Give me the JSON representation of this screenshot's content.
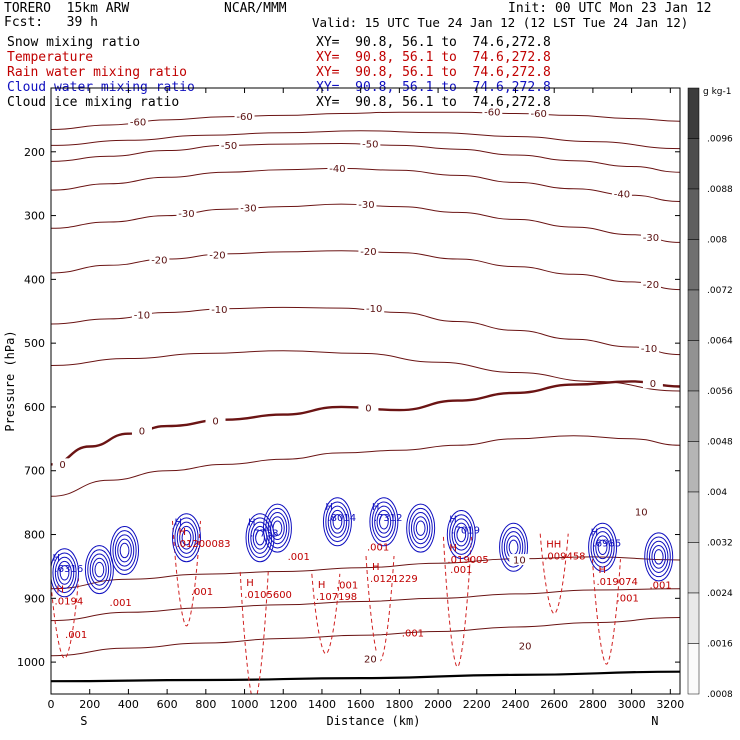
{
  "header": {
    "model": "TORERO  15km ARW",
    "center": "NCAR/MMM",
    "init": "Init: 00 UTC Mon 23 Jan 12",
    "fcst": "Fcst:   39 h",
    "valid": "Valid: 15 UTC Tue 24 Jan 12 (12 LST Tue 24 Jan 12)",
    "cross_section": "XY=  90.8, 56.1 to  74.6,272.8"
  },
  "legend": [
    {
      "label": "Snow mixing ratio",
      "color": "#000000"
    },
    {
      "label": "Temperature",
      "color": "#c00000"
    },
    {
      "label": "Rain water mixing ratio",
      "color": "#c00000"
    },
    {
      "label": "Cloud water mixing ratio",
      "color": "#1010c0"
    },
    {
      "label": "Cloud ice mixing ratio",
      "color": "#000000"
    }
  ],
  "chart_data": {
    "type": "contour-cross-section",
    "xlabel": "Distance (km)",
    "ylabel": "Pressure (hPa)",
    "xlim": [
      0,
      3250
    ],
    "ylim": [
      1050,
      100
    ],
    "xticks": [
      0,
      200,
      400,
      600,
      800,
      1000,
      1200,
      1400,
      1600,
      1800,
      2000,
      2200,
      2400,
      2600,
      2800,
      3000,
      3200
    ],
    "yticks": [
      200,
      300,
      400,
      500,
      600,
      700,
      800,
      900,
      1000
    ],
    "endpoints": {
      "left": "S",
      "right": "N"
    },
    "temperature_isotherms": [
      {
        "value": -60,
        "label": "-60",
        "points": [
          [
            0,
            165
          ],
          [
            300,
            158
          ],
          [
            600,
            150
          ],
          [
            900,
            145
          ],
          [
            1200,
            143
          ],
          [
            1500,
            140
          ],
          [
            1800,
            138
          ],
          [
            2100,
            138
          ],
          [
            2400,
            140
          ],
          [
            2700,
            143
          ],
          [
            3000,
            148
          ],
          [
            3250,
            152
          ]
        ],
        "labels_at": [
          [
            450,
            153
          ],
          [
            1000,
            145
          ],
          [
            2280,
            138
          ],
          [
            2520,
            140
          ]
        ]
      },
      {
        "value": -55,
        "label": "",
        "points": [
          [
            0,
            190
          ],
          [
            400,
            182
          ],
          [
            800,
            174
          ],
          [
            1200,
            170
          ],
          [
            1600,
            167
          ],
          [
            2000,
            170
          ],
          [
            2400,
            176
          ],
          [
            2800,
            184
          ],
          [
            3250,
            195
          ]
        ],
        "labels_at": []
      },
      {
        "value": -50,
        "label": "-50",
        "points": [
          [
            0,
            215
          ],
          [
            300,
            207
          ],
          [
            600,
            198
          ],
          [
            900,
            190
          ],
          [
            1200,
            188
          ],
          [
            1500,
            187
          ],
          [
            1800,
            190
          ],
          [
            2100,
            196
          ],
          [
            2400,
            205
          ],
          [
            2700,
            214
          ],
          [
            3000,
            223
          ],
          [
            3250,
            232
          ]
        ],
        "labels_at": [
          [
            920,
            190
          ],
          [
            1650,
            188
          ]
        ]
      },
      {
        "value": -40,
        "label": "-40",
        "points": [
          [
            0,
            260
          ],
          [
            300,
            250
          ],
          [
            600,
            240
          ],
          [
            900,
            232
          ],
          [
            1200,
            228
          ],
          [
            1500,
            226
          ],
          [
            1800,
            229
          ],
          [
            2100,
            237
          ],
          [
            2400,
            248
          ],
          [
            2700,
            258
          ],
          [
            3000,
            268
          ],
          [
            3250,
            278
          ]
        ],
        "labels_at": [
          [
            1480,
            226
          ],
          [
            2950,
            266
          ]
        ]
      },
      {
        "value": -30,
        "label": "-30",
        "points": [
          [
            0,
            320
          ],
          [
            300,
            310
          ],
          [
            600,
            300
          ],
          [
            900,
            290
          ],
          [
            1200,
            286
          ],
          [
            1500,
            282
          ],
          [
            1800,
            286
          ],
          [
            2100,
            295
          ],
          [
            2400,
            306
          ],
          [
            2700,
            318
          ],
          [
            3000,
            330
          ],
          [
            3250,
            342
          ]
        ],
        "labels_at": [
          [
            700,
            297
          ],
          [
            1020,
            288
          ],
          [
            1630,
            283
          ],
          [
            3100,
            334
          ]
        ]
      },
      {
        "value": -20,
        "label": "-20",
        "points": [
          [
            0,
            390
          ],
          [
            300,
            378
          ],
          [
            600,
            368
          ],
          [
            900,
            360
          ],
          [
            1200,
            357
          ],
          [
            1500,
            355
          ],
          [
            1800,
            358
          ],
          [
            2100,
            368
          ],
          [
            2400,
            380
          ],
          [
            2700,
            392
          ],
          [
            3000,
            404
          ],
          [
            3250,
            416
          ]
        ],
        "labels_at": [
          [
            560,
            370
          ],
          [
            860,
            362
          ],
          [
            1640,
            356
          ],
          [
            3100,
            408
          ]
        ]
      },
      {
        "value": -10,
        "label": "-10",
        "points": [
          [
            0,
            470
          ],
          [
            300,
            462
          ],
          [
            600,
            452
          ],
          [
            900,
            446
          ],
          [
            1200,
            444
          ],
          [
            1500,
            445
          ],
          [
            1800,
            452
          ],
          [
            2100,
            466
          ],
          [
            2400,
            480
          ],
          [
            2700,
            494
          ],
          [
            3000,
            506
          ],
          [
            3250,
            518
          ]
        ],
        "labels_at": [
          [
            470,
            456
          ],
          [
            870,
            447
          ],
          [
            1670,
            446
          ],
          [
            3090,
            508
          ]
        ]
      },
      {
        "value": -5,
        "label": "",
        "points": [
          [
            0,
            535
          ],
          [
            400,
            524
          ],
          [
            800,
            516
          ],
          [
            1200,
            512
          ],
          [
            1600,
            516
          ],
          [
            2000,
            530
          ],
          [
            2400,
            546
          ],
          [
            2800,
            560
          ],
          [
            3250,
            575
          ]
        ],
        "labels_at": []
      },
      {
        "value": 0,
        "label": "0",
        "points": [
          [
            0,
            690
          ],
          [
            200,
            662
          ],
          [
            400,
            642
          ],
          [
            600,
            630
          ],
          [
            900,
            620
          ],
          [
            1200,
            612
          ],
          [
            1500,
            600
          ],
          [
            1800,
            605
          ],
          [
            2100,
            590
          ],
          [
            2400,
            578
          ],
          [
            2700,
            565
          ],
          [
            3000,
            560
          ],
          [
            3250,
            568
          ]
        ],
        "labels_at": [
          [
            60,
            690
          ],
          [
            470,
            638
          ],
          [
            850,
            622
          ],
          [
            1640,
            602
          ],
          [
            3110,
            563
          ]
        ]
      },
      {
        "value": 5,
        "label": "",
        "points": [
          [
            0,
            740
          ],
          [
            300,
            715
          ],
          [
            600,
            700
          ],
          [
            900,
            690
          ],
          [
            1200,
            682
          ],
          [
            1500,
            672
          ],
          [
            1800,
            668
          ],
          [
            2100,
            660
          ],
          [
            2400,
            650
          ],
          [
            2700,
            645
          ],
          [
            3000,
            650
          ],
          [
            3250,
            660
          ]
        ],
        "labels_at": []
      },
      {
        "value": 10,
        "label": "10",
        "points": [
          [
            0,
            885
          ],
          [
            400,
            870
          ],
          [
            800,
            862
          ],
          [
            1200,
            858
          ],
          [
            1600,
            852
          ],
          [
            2000,
            845
          ],
          [
            2400,
            838
          ],
          [
            2800,
            835
          ],
          [
            3250,
            840
          ]
        ],
        "labels_at": [
          [
            2420,
            840
          ],
          [
            3050,
            765
          ]
        ]
      },
      {
        "value": 15,
        "label": "",
        "points": [
          [
            0,
            935
          ],
          [
            400,
            922
          ],
          [
            800,
            915
          ],
          [
            1200,
            910
          ],
          [
            1600,
            905
          ],
          [
            2000,
            900
          ],
          [
            2400,
            893
          ],
          [
            2800,
            887
          ],
          [
            3250,
            885
          ]
        ],
        "labels_at": []
      },
      {
        "value": 20,
        "label": "20",
        "points": [
          [
            0,
            990
          ],
          [
            400,
            978
          ],
          [
            800,
            970
          ],
          [
            1200,
            963
          ],
          [
            1600,
            958
          ],
          [
            2000,
            952
          ],
          [
            2400,
            945
          ],
          [
            2800,
            938
          ],
          [
            3250,
            930
          ]
        ],
        "labels_at": [
          [
            1650,
            995
          ],
          [
            2450,
            975
          ]
        ]
      }
    ],
    "surface_pressure": [
      [
        0,
        1030
      ],
      [
        800,
        1028
      ],
      [
        1600,
        1025
      ],
      [
        2400,
        1020
      ],
      [
        3250,
        1015
      ]
    ],
    "cloud_water_cells": [
      {
        "x": 70,
        "p": 860,
        "label": "H",
        "value": ".6316"
      },
      {
        "x": 250,
        "p": 855,
        "label": "",
        "value": ""
      },
      {
        "x": 380,
        "p": 825,
        "label": "",
        "value": ""
      },
      {
        "x": 700,
        "p": 805,
        "label": "H",
        "value": ""
      },
      {
        "x": 1080,
        "p": 805,
        "label": "H",
        "value": ".7733"
      },
      {
        "x": 1170,
        "p": 790,
        "label": "",
        "value": ""
      },
      {
        "x": 1480,
        "p": 780,
        "label": "H",
        "value": ".8014"
      },
      {
        "x": 1720,
        "p": 780,
        "label": "H",
        "value": ".7312"
      },
      {
        "x": 1910,
        "p": 790,
        "label": "",
        "value": ""
      },
      {
        "x": 2120,
        "p": 800,
        "label": "H",
        "value": ".7019"
      },
      {
        "x": 2390,
        "p": 820,
        "label": "",
        "value": ""
      },
      {
        "x": 2850,
        "p": 820,
        "label": "H",
        "value": ".6985"
      },
      {
        "x": 3140,
        "p": 835,
        "label": "",
        "value": ""
      }
    ],
    "rain_water_labels": [
      {
        "x": 70,
        "p": 900,
        "label": "H",
        "value": ".0194"
      },
      {
        "x": 700,
        "p": 810,
        "label": "H",
        "value": ".01200083"
      },
      {
        "x": 1050,
        "p": 890,
        "label": "H",
        "value": ".0105600"
      },
      {
        "x": 1420,
        "p": 893,
        "label": "H",
        "value": ".107198"
      },
      {
        "x": 1700,
        "p": 865,
        "label": "H",
        "value": ".0121229"
      },
      {
        "x": 2100,
        "p": 835,
        "label": "H",
        "value": ".019005"
      },
      {
        "x": 2600,
        "p": 830,
        "label": "HH",
        "value": ".009458"
      },
      {
        "x": 2870,
        "p": 870,
        "label": "H",
        "value": ".019074"
      }
    ],
    "rain_contour_labels": [
      {
        "x": 360,
        "p": 912,
        "value": ".001"
      },
      {
        "x": 780,
        "p": 895,
        "value": ".001"
      },
      {
        "x": 1280,
        "p": 840,
        "value": ".001"
      },
      {
        "x": 1530,
        "p": 885,
        "value": ".001"
      },
      {
        "x": 1690,
        "p": 825,
        "value": ".001"
      },
      {
        "x": 1870,
        "p": 960,
        "value": ".001"
      },
      {
        "x": 2120,
        "p": 860,
        "value": ".001"
      },
      {
        "x": 2980,
        "p": 905,
        "value": ".001"
      },
      {
        "x": 3150,
        "p": 885,
        "value": ".001"
      },
      {
        "x": 130,
        "p": 962,
        "value": ".001"
      }
    ],
    "colorbar": {
      "units": "g kg-1",
      "ticks": [
        ".0096",
        ".0088",
        ".008",
        ".0072",
        ".0064",
        ".0056",
        ".0048",
        ".004",
        ".0032",
        ".0024",
        ".0016",
        ".0008"
      ]
    }
  }
}
